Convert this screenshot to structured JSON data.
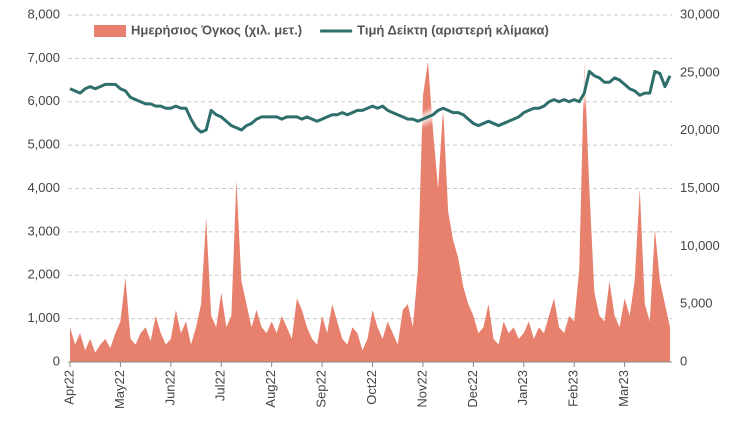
{
  "chart_data": {
    "type": "area-line",
    "categories": [
      "Apr22",
      null,
      null,
      null,
      null,
      null,
      null,
      null,
      null,
      null,
      "May22",
      null,
      null,
      null,
      null,
      null,
      null,
      null,
      null,
      null,
      "Jun22",
      null,
      null,
      null,
      null,
      null,
      null,
      null,
      null,
      null,
      "Jul22",
      null,
      null,
      null,
      null,
      null,
      null,
      null,
      null,
      null,
      "Aug22",
      null,
      null,
      null,
      null,
      null,
      null,
      null,
      null,
      null,
      "Sep22",
      null,
      null,
      null,
      null,
      null,
      null,
      null,
      null,
      null,
      "Oct22",
      null,
      null,
      null,
      null,
      null,
      null,
      null,
      null,
      null,
      "Nov22",
      null,
      null,
      null,
      null,
      null,
      null,
      null,
      null,
      null,
      "Dec22",
      null,
      null,
      null,
      null,
      null,
      null,
      null,
      null,
      null,
      "Jan23",
      null,
      null,
      null,
      null,
      null,
      null,
      null,
      null,
      null,
      "Feb23",
      null,
      null,
      null,
      null,
      null,
      null,
      null,
      null,
      null,
      "Mar23",
      null,
      null,
      null,
      null,
      null,
      null,
      null,
      null,
      null
    ],
    "series": [
      {
        "name": "Ημερήσιος Όγκος (χιλ. μετ.)",
        "color": "#e8806e",
        "axis": "y2",
        "kind": "area",
        "values": [
          3000,
          1500,
          2500,
          1000,
          2000,
          800,
          1500,
          2000,
          1200,
          2500,
          3500,
          7300,
          2000,
          1500,
          2500,
          3000,
          1800,
          4000,
          2500,
          1500,
          2000,
          4500,
          2500,
          3500,
          1500,
          3000,
          5000,
          12500,
          4000,
          3000,
          6000,
          3000,
          4000,
          15700,
          7000,
          5000,
          3000,
          4500,
          3000,
          2500,
          3500,
          2500,
          4000,
          3000,
          2000,
          5500,
          4500,
          3000,
          2000,
          1500,
          4000,
          2500,
          5000,
          3500,
          2000,
          1500,
          3000,
          2500,
          1000,
          2000,
          4500,
          3000,
          2000,
          3500,
          2500,
          1500,
          4500,
          5000,
          3000,
          8000,
          23000,
          26000,
          20000,
          15000,
          22000,
          13000,
          10500,
          9000,
          6500,
          5000,
          4000,
          2500,
          3000,
          5000,
          2000,
          1500,
          3500,
          2500,
          3000,
          2000,
          2500,
          3500,
          2000,
          3000,
          2500,
          4000,
          5500,
          3000,
          2500,
          4000,
          3500,
          8000,
          26000,
          15000,
          6000,
          4000,
          3500,
          7000,
          4000,
          3000,
          5500,
          4000,
          7000,
          15000,
          5000,
          3500,
          11500,
          7000,
          5000,
          3000
        ]
      },
      {
        "name": "Τιμή Δείκτη (αριστερή κλίμακα)",
        "color": "#2e6e6b",
        "axis": "y",
        "kind": "line",
        "values": [
          6300,
          6250,
          6200,
          6300,
          6350,
          6300,
          6350,
          6400,
          6400,
          6400,
          6300,
          6250,
          6100,
          6050,
          6000,
          5950,
          5950,
          5900,
          5900,
          5850,
          5850,
          5900,
          5850,
          5850,
          5600,
          5400,
          5300,
          5350,
          5800,
          5700,
          5650,
          5550,
          5450,
          5400,
          5350,
          5450,
          5500,
          5600,
          5650,
          5650,
          5650,
          5650,
          5600,
          5650,
          5650,
          5650,
          5600,
          5650,
          5600,
          5550,
          5600,
          5650,
          5700,
          5700,
          5750,
          5700,
          5750,
          5800,
          5800,
          5850,
          5900,
          5850,
          5900,
          5800,
          5750,
          5700,
          5650,
          5600,
          5600,
          5550,
          5600,
          5650,
          5700,
          5800,
          5850,
          5800,
          5750,
          5750,
          5700,
          5600,
          5500,
          5450,
          5500,
          5550,
          5500,
          5450,
          5500,
          5550,
          5600,
          5650,
          5750,
          5800,
          5850,
          5850,
          5900,
          6000,
          6050,
          6000,
          6050,
          6000,
          6050,
          6000,
          6200,
          6700,
          6600,
          6550,
          6450,
          6450,
          6550,
          6500,
          6400,
          6300,
          6250,
          6150,
          6200,
          6200,
          6700,
          6650,
          6350,
          6600
        ]
      }
    ],
    "ylim": [
      0,
      8000
    ],
    "yticks": [
      0,
      {
        "value": 1000,
        "label": "1,000"
      },
      {
        "value": 2000,
        "label": "2,000"
      },
      {
        "value": 3000,
        "label": "3,000"
      },
      {
        "value": 4000,
        "label": "4,000"
      },
      {
        "value": 5000,
        "label": "5,000"
      },
      {
        "value": 6000,
        "label": "6,000"
      },
      {
        "value": 7000,
        "label": "7,000"
      },
      {
        "value": 8000,
        "label": "8,000"
      }
    ],
    "y2lim": [
      0,
      30000
    ],
    "y2ticks": [
      0,
      {
        "value": 5000,
        "label": "5,000"
      },
      {
        "value": 10000,
        "label": "10,000"
      },
      {
        "value": 15000,
        "label": "15,000"
      },
      {
        "value": 20000,
        "label": "20,000"
      },
      {
        "value": 25000,
        "label": "25,000"
      },
      {
        "value": 30000,
        "label": "30,000"
      }
    ],
    "grid": true,
    "legend": "top"
  }
}
